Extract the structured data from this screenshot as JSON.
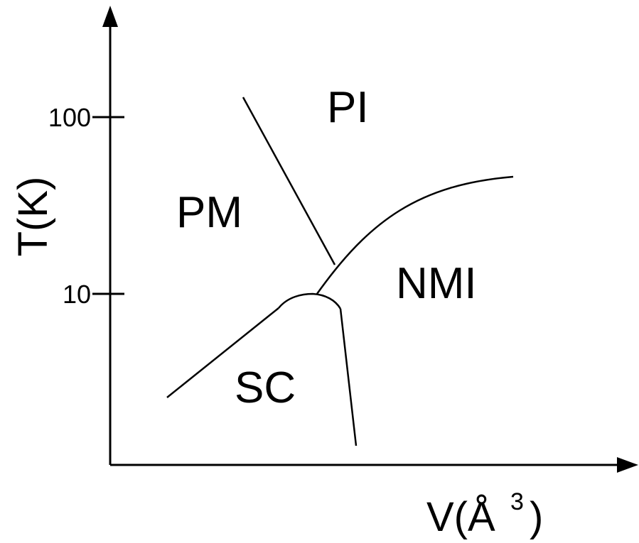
{
  "diagram": {
    "regions": {
      "pi": "PI",
      "pm": "PM",
      "nmi": "NMI",
      "sc": "SC"
    },
    "y_axis": {
      "label": "T(K)",
      "ticks": [
        "100",
        "10"
      ]
    },
    "x_axis": {
      "label_main": "V(Å",
      "label_sup": "3",
      "label_close": ")"
    }
  }
}
